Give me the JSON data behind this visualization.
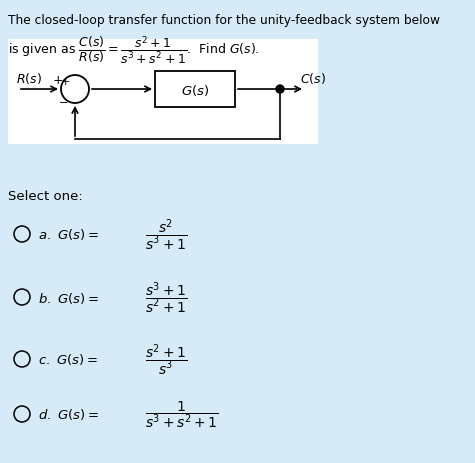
{
  "bg_color": "#d6eaf8",
  "fig_width": 4.75,
  "fig_height": 4.64,
  "dpi": 100,
  "title_line1": "The closed-loop transfer function for the unity-feedback system below",
  "options_title": "Select one:",
  "option_labels": [
    "a",
    "b",
    "c",
    "d"
  ],
  "option_nums": [
    "s^2",
    "s^3+1",
    "s^2+1",
    "1"
  ],
  "option_dens": [
    "s^3+1",
    "s^2+1",
    "s^3",
    "s^3+s^2+1"
  ]
}
